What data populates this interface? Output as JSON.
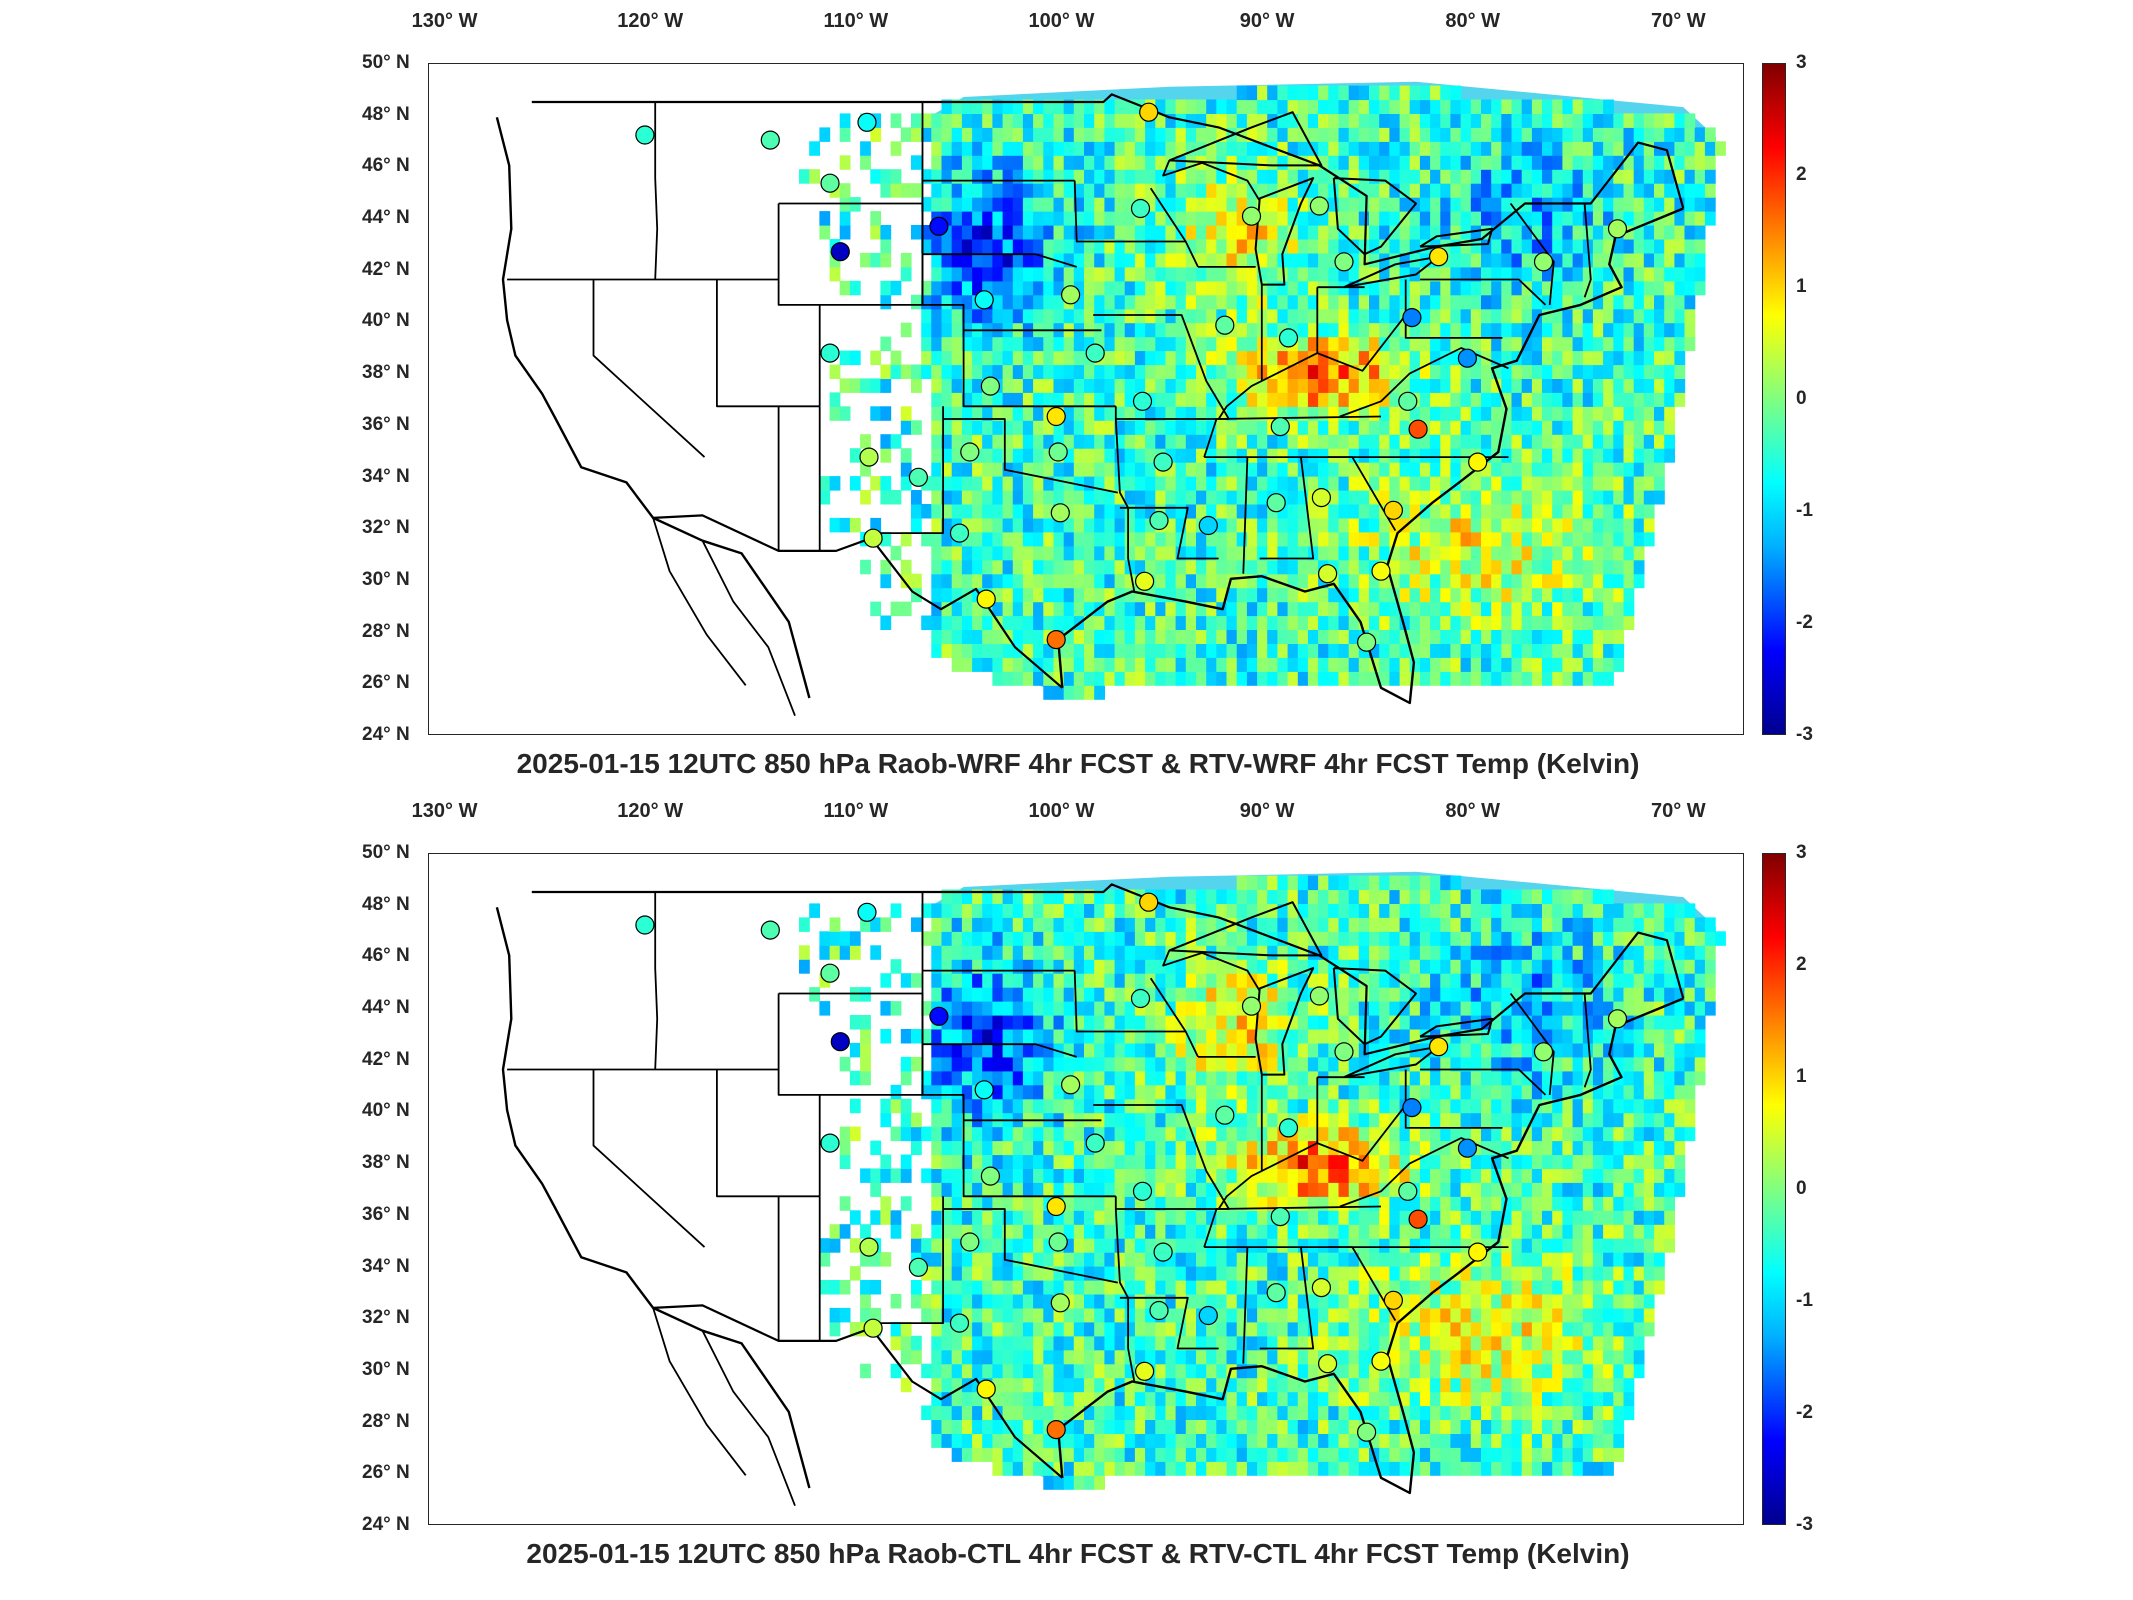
{
  "lon_ticks": [
    "130° W",
    "120° W",
    "110° W",
    "100° W",
    "90° W",
    "80° W",
    "70° W"
  ],
  "lat_ticks": [
    "50° N",
    "48° N",
    "46° N",
    "44° N",
    "42° N",
    "40° N",
    "38° N",
    "36° N",
    "34° N",
    "32° N",
    "30° N",
    "28° N",
    "26° N",
    "24° N"
  ],
  "colorbar": {
    "ticks": [
      "3",
      "2",
      "1",
      "0",
      "-1",
      "-2",
      "-3"
    ],
    "colors": [
      "#00008f",
      "#0000ff",
      "#00ffff",
      "#80ff80",
      "#ffff00",
      "#ff0000",
      "#800000"
    ]
  },
  "panels": [
    {
      "title": "2025-01-15 12UTC 850 hPa Raob-WRF 4hr FCST & RTV-WRF 4hr FCST Temp (Kelvin)"
    },
    {
      "title": "2025-01-15 12UTC 850 hPa Raob-CTL 4hr FCST & RTV-CTL 4hr FCST Temp (Kelvin)"
    }
  ],
  "raob_stations": [
    {
      "lon": -117.5,
      "lat": 47.7,
      "value": -0.5
    },
    {
      "lon": -111.4,
      "lat": 47.5,
      "value": -0.3
    },
    {
      "lon": -108.5,
      "lat": 45.8,
      "value": -0.2
    },
    {
      "lon": -106.7,
      "lat": 48.2,
      "value": -0.7
    },
    {
      "lon": -108.0,
      "lat": 43.1,
      "value": -2.6
    },
    {
      "lon": -103.2,
      "lat": 44.1,
      "value": -2.2
    },
    {
      "lon": -101.0,
      "lat": 41.2,
      "value": -0.7
    },
    {
      "lon": -96.8,
      "lat": 41.4,
      "value": 0.2
    },
    {
      "lon": -93.4,
      "lat": 44.8,
      "value": -0.4
    },
    {
      "lon": -93.0,
      "lat": 48.6,
      "value": 1.0
    },
    {
      "lon": -88.0,
      "lat": 44.5,
      "value": 0.1
    },
    {
      "lon": -84.7,
      "lat": 44.9,
      "value": 0.1
    },
    {
      "lon": -83.5,
      "lat": 42.7,
      "value": 0.0
    },
    {
      "lon": -78.9,
      "lat": 42.9,
      "value": 0.9
    },
    {
      "lon": -73.8,
      "lat": 42.7,
      "value": 0.1
    },
    {
      "lon": -70.2,
      "lat": 44.0,
      "value": 0.2
    },
    {
      "lon": -108.5,
      "lat": 39.1,
      "value": -0.5
    },
    {
      "lon": -106.6,
      "lat": 35.0,
      "value": 0.3
    },
    {
      "lon": -104.2,
      "lat": 34.2,
      "value": -0.3
    },
    {
      "lon": -101.7,
      "lat": 35.2,
      "value": 0.0
    },
    {
      "lon": -100.7,
      "lat": 37.8,
      "value": 0.0
    },
    {
      "lon": -95.6,
      "lat": 39.1,
      "value": -0.4
    },
    {
      "lon": -97.5,
      "lat": 36.6,
      "value": 0.9
    },
    {
      "lon": -97.4,
      "lat": 35.2,
      "value": -0.1
    },
    {
      "lon": -93.3,
      "lat": 37.2,
      "value": -0.5
    },
    {
      "lon": -92.3,
      "lat": 34.8,
      "value": -0.4
    },
    {
      "lon": -89.3,
      "lat": 40.2,
      "value": -0.2
    },
    {
      "lon": -86.2,
      "lat": 39.7,
      "value": -0.5
    },
    {
      "lon": -86.6,
      "lat": 36.2,
      "value": -0.3
    },
    {
      "lon": -80.2,
      "lat": 40.5,
      "value": -1.5
    },
    {
      "lon": -77.5,
      "lat": 38.9,
      "value": -1.4
    },
    {
      "lon": -80.4,
      "lat": 37.2,
      "value": -0.2
    },
    {
      "lon": -79.9,
      "lat": 36.1,
      "value": 1.8
    },
    {
      "lon": -77.0,
      "lat": 34.8,
      "value": 0.8
    },
    {
      "lon": -81.1,
      "lat": 32.9,
      "value": 1.0
    },
    {
      "lon": -84.6,
      "lat": 33.4,
      "value": 0.5
    },
    {
      "lon": -86.8,
      "lat": 33.2,
      "value": -0.2
    },
    {
      "lon": -90.1,
      "lat": 32.3,
      "value": -1.0
    },
    {
      "lon": -92.5,
      "lat": 32.5,
      "value": -0.3
    },
    {
      "lon": -97.3,
      "lat": 32.8,
      "value": 0.2
    },
    {
      "lon": -102.2,
      "lat": 32.0,
      "value": -0.4
    },
    {
      "lon": -106.4,
      "lat": 31.8,
      "value": 0.4
    },
    {
      "lon": -100.9,
      "lat": 29.4,
      "value": 0.8
    },
    {
      "lon": -97.5,
      "lat": 27.8,
      "value": 1.6
    },
    {
      "lon": -93.2,
      "lat": 30.1,
      "value": 0.6
    },
    {
      "lon": -84.3,
      "lat": 30.4,
      "value": 0.5
    },
    {
      "lon": -81.7,
      "lat": 30.5,
      "value": 0.7
    },
    {
      "lon": -82.4,
      "lat": 27.7,
      "value": 0.0
    }
  ]
}
